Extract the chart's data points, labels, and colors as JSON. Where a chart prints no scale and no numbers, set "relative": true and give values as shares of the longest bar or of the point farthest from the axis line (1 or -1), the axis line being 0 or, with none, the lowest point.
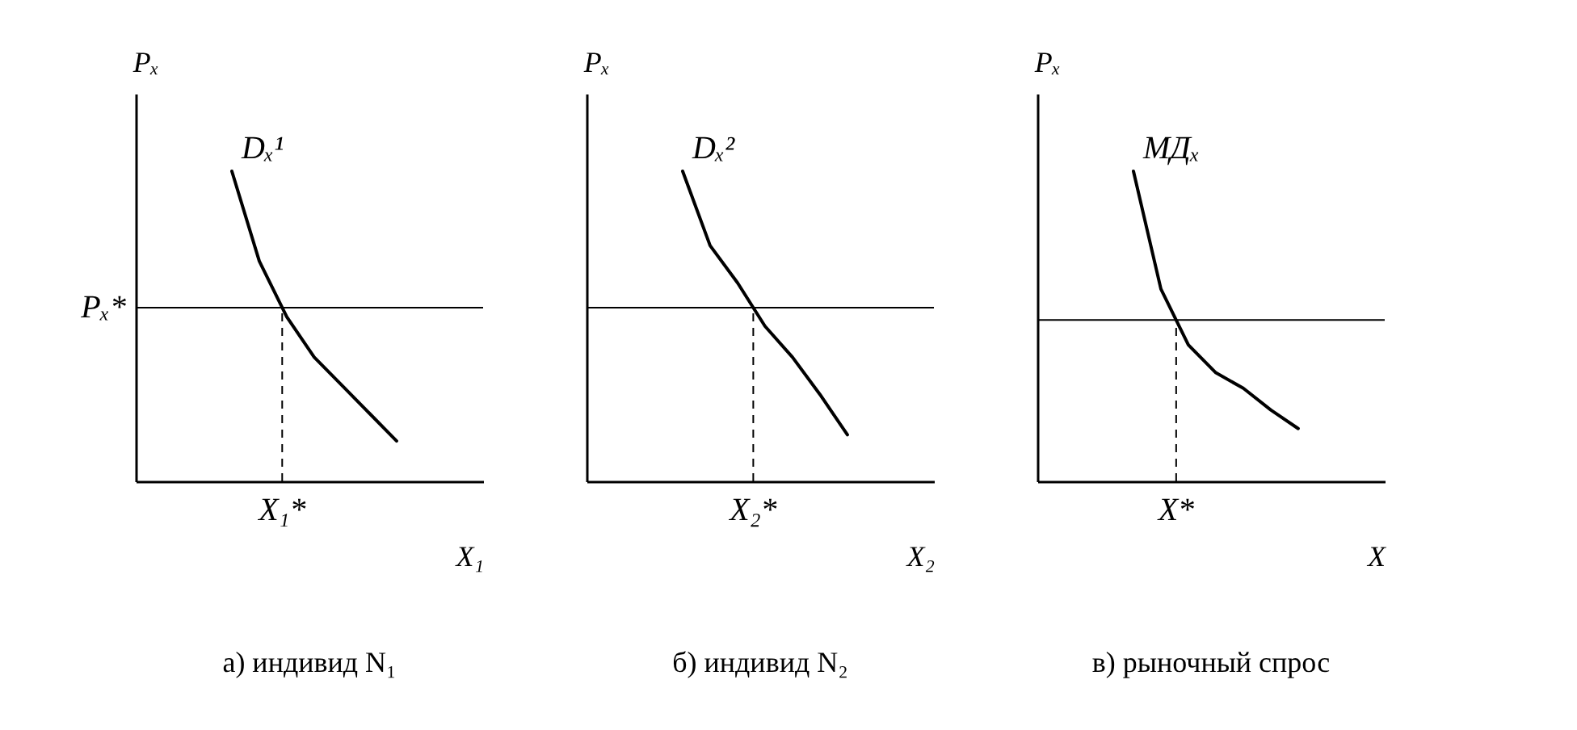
{
  "chart_data": [
    {
      "type": "line",
      "relative": true,
      "title": "а) индивид N₁",
      "xlabel": "X₁",
      "ylabel": "Pₓ",
      "grid": false,
      "marker": "none",
      "line_style": "solid",
      "categories": [
        null,
        null,
        null,
        null,
        null,
        null,
        null
      ],
      "series": [
        {
          "name": "Dₓ¹",
          "color": "#000000",
          "values": [
            1,
            0.71,
            0.53,
            0.4,
            0.31,
            0.22,
            0.13
          ]
        }
      ],
      "ref_lines": [
        {
          "axis": "y",
          "value": 0.56,
          "label": "Pₓ*",
          "line_style": "solid"
        }
      ],
      "annotations": [
        "X₁*"
      ]
    },
    {
      "type": "line",
      "relative": true,
      "title": "б) индивид N₂",
      "xlabel": "X₂",
      "ylabel": "Pₓ",
      "grid": false,
      "marker": "none",
      "line_style": "solid",
      "categories": [
        null,
        null,
        null,
        null,
        null,
        null,
        null
      ],
      "series": [
        {
          "name": "Dₓ²",
          "color": "#000000",
          "values": [
            1,
            0.76,
            0.64,
            0.5,
            0.4,
            0.28,
            0.15
          ]
        }
      ],
      "ref_lines": [
        {
          "axis": "y",
          "value": 0.56,
          "line_style": "solid"
        }
      ],
      "annotations": [
        "X₂*"
      ]
    },
    {
      "type": "line",
      "relative": true,
      "title": "в) рыночный спрос",
      "xlabel": "X",
      "ylabel": "Pₓ",
      "grid": false,
      "marker": "none",
      "line_style": "solid",
      "categories": [
        null,
        null,
        null,
        null,
        null,
        null,
        null
      ],
      "series": [
        {
          "name": "МДₓ",
          "color": "#000000",
          "values": [
            1,
            0.62,
            0.44,
            0.35,
            0.3,
            0.23,
            0.17
          ]
        }
      ],
      "ref_lines": [
        {
          "axis": "y",
          "value": 0.52,
          "line_style": "solid"
        }
      ],
      "annotations": [
        "X*"
      ]
    }
  ]
}
